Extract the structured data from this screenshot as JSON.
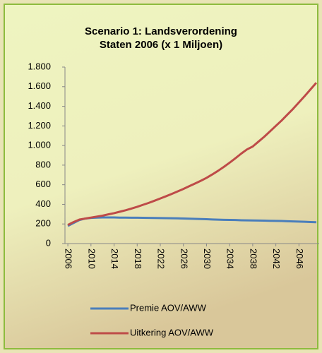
{
  "chart_data": {
    "type": "line",
    "title": [
      "Scenario 1: Landsverordening",
      "Staten 2006 (x 1 Miljoen)"
    ],
    "x": [
      2006,
      2007,
      2008,
      2009,
      2010,
      2011,
      2012,
      2013,
      2014,
      2015,
      2016,
      2017,
      2018,
      2019,
      2020,
      2021,
      2022,
      2023,
      2024,
      2025,
      2026,
      2027,
      2028,
      2029,
      2030,
      2031,
      2032,
      2033,
      2034,
      2035,
      2036,
      2037,
      2038,
      2039,
      2040,
      2041,
      2042,
      2043,
      2044,
      2045,
      2046,
      2047,
      2048,
      2049
    ],
    "xlim": [
      2005.5,
      2049.5
    ],
    "xticks": [
      2006,
      2010,
      2014,
      2018,
      2022,
      2026,
      2030,
      2034,
      2038,
      2042,
      2046
    ],
    "ylim": [
      0,
      1800
    ],
    "yticks": [
      0,
      200,
      400,
      600,
      800,
      {
        "value": 1000,
        "label": "1.000"
      },
      {
        "value": 1200,
        "label": "1.200"
      },
      {
        "value": 1400,
        "label": "1.400"
      },
      {
        "value": 1600,
        "label": "1.600"
      },
      {
        "value": 1800,
        "label": "1.800"
      }
    ],
    "grid": false,
    "legend": "bottom",
    "series": [
      {
        "name": "Premie AOV/AWW",
        "color": "#4a7ebb",
        "values": [
          180,
          210,
          240,
          255,
          262,
          265,
          266,
          266,
          266,
          265,
          265,
          264,
          264,
          263,
          262,
          261,
          260,
          259,
          258,
          257,
          256,
          254,
          252,
          250,
          248,
          246,
          244,
          242,
          241,
          240,
          238,
          237,
          236,
          235,
          234,
          232,
          231,
          230,
          228,
          226,
          224,
          222,
          220,
          218
        ]
      },
      {
        "name": "Uitkering AOV/AWW",
        "color": "#be4b48",
        "values": [
          190,
          220,
          245,
          255,
          265,
          275,
          285,
          298,
          310,
          325,
          340,
          357,
          375,
          395,
          415,
          437,
          460,
          483,
          507,
          532,
          557,
          585,
          612,
          640,
          670,
          705,
          742,
          782,
          825,
          870,
          917,
          960,
          990,
          1040,
          1090,
          1145,
          1200,
          1255,
          1315,
          1375,
          1440,
          1505,
          1572,
          1640
        ]
      }
    ]
  }
}
